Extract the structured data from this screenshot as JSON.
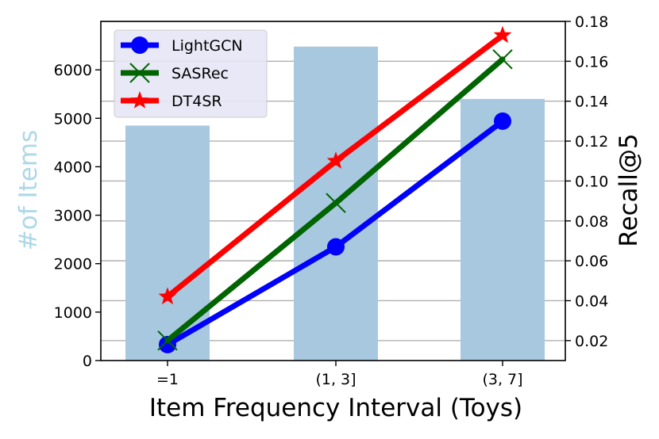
{
  "chart_data": {
    "type": "bar",
    "categories": [
      "=1",
      "(1, 3]",
      "(3, 7]"
    ],
    "bars": {
      "name": "",
      "values": [
        4850,
        6480,
        5400
      ],
      "color": "#a8c8e0",
      "axis": "left"
    },
    "series": [
      {
        "name": "LightGCN",
        "values": [
          0.018,
          0.067,
          0.13
        ],
        "color": "#0000ff",
        "marker": "circle",
        "axis": "right"
      },
      {
        "name": "SASRec",
        "values": [
          0.02,
          0.089,
          0.161
        ],
        "color": "#006400",
        "marker": "x",
        "axis": "right"
      },
      {
        "name": "DT4SR",
        "values": [
          0.042,
          0.11,
          0.173
        ],
        "color": "#ff0000",
        "marker": "star",
        "axis": "right"
      }
    ],
    "xlabel": "Item Frequency Interval (Toys)",
    "ylabel_left": "#of Items",
    "ylabel_right": "Recall@5",
    "ylim_left": [
      0,
      7000
    ],
    "yticks_left": [
      0,
      1000,
      2000,
      3000,
      4000,
      5000,
      6000
    ],
    "ylim_right": [
      0.01,
      0.18
    ],
    "yticks_right": [
      "0.02",
      "0.04",
      "0.06",
      "0.08",
      "0.10",
      "0.12",
      "0.14",
      "0.16",
      "0.18"
    ],
    "grid": "horizontal-right-axis",
    "legend_position": "top-left",
    "ylabel_left_color": "#add8e6"
  }
}
